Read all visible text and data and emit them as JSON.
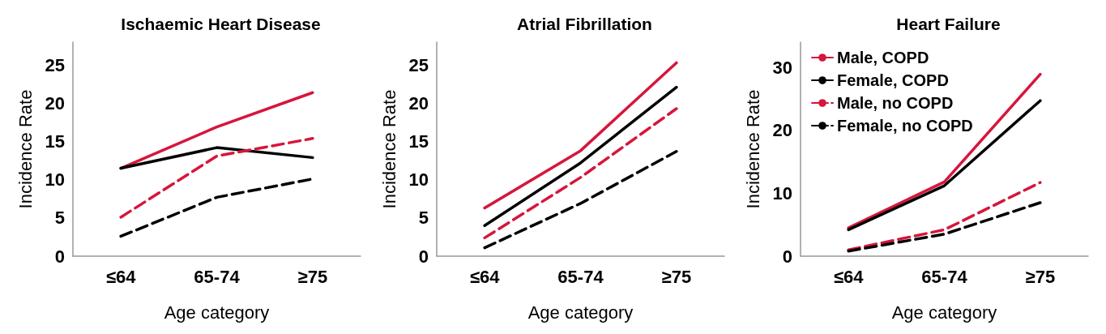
{
  "chart_data": [
    {
      "type": "line",
      "title": "Ischaemic Heart Disease",
      "xlabel": "Age category",
      "ylabel": "Incidence Rate",
      "categories": [
        "≤64",
        "65-74",
        "≥75"
      ],
      "ylim": [
        0,
        28
      ],
      "yticks": [
        0,
        5,
        10,
        15,
        20,
        25
      ],
      "grid": false,
      "series": [
        {
          "color": "#d6163c",
          "line_style": "solid",
          "values": [
            11.5,
            16.9,
            21.4
          ]
        },
        {
          "color": "#000000",
          "line_style": "solid",
          "values": [
            11.5,
            14.2,
            12.9
          ]
        },
        {
          "color": "#d6163c",
          "line_style": "dashed",
          "values": [
            5.1,
            13.1,
            15.4
          ]
        },
        {
          "color": "#000000",
          "line_style": "dashed",
          "values": [
            2.6,
            7.7,
            10.1
          ]
        }
      ]
    },
    {
      "type": "line",
      "title": "Atrial Fibrillation",
      "xlabel": "Age category",
      "ylabel": "Incidence Rate",
      "categories": [
        "≤64",
        "65-74",
        "≥75"
      ],
      "ylim": [
        0,
        28
      ],
      "yticks": [
        0,
        5,
        10,
        15,
        20,
        25
      ],
      "grid": false,
      "series": [
        {
          "color": "#d6163c",
          "line_style": "solid",
          "values": [
            6.3,
            13.8,
            25.3
          ]
        },
        {
          "color": "#000000",
          "line_style": "solid",
          "values": [
            4.0,
            12.2,
            22.1
          ]
        },
        {
          "color": "#d6163c",
          "line_style": "dashed",
          "values": [
            2.4,
            10.3,
            19.3
          ]
        },
        {
          "color": "#000000",
          "line_style": "dashed",
          "values": [
            1.1,
            6.9,
            13.7
          ]
        }
      ]
    },
    {
      "type": "line",
      "title": "Heart Failure",
      "xlabel": "Age category",
      "ylabel": "Incidence Rate",
      "categories": [
        "≤64",
        "65-74",
        "≥75"
      ],
      "ylim": [
        0,
        34
      ],
      "yticks": [
        0,
        10,
        20,
        30
      ],
      "grid": false,
      "legend": "top left",
      "series": [
        {
          "name": "Male, COPD",
          "color": "#d6163c",
          "line_style": "solid",
          "values": [
            4.5,
            11.8,
            28.9
          ]
        },
        {
          "name": "Female, COPD",
          "color": "#000000",
          "line_style": "solid",
          "values": [
            4.2,
            11.2,
            24.7
          ]
        },
        {
          "name": "Male, no COPD",
          "color": "#d6163c",
          "line_style": "dashed",
          "values": [
            1.0,
            4.2,
            11.7
          ]
        },
        {
          "name": "Female, no COPD",
          "color": "#000000",
          "line_style": "dashed",
          "values": [
            0.8,
            3.5,
            8.5
          ]
        }
      ]
    }
  ]
}
